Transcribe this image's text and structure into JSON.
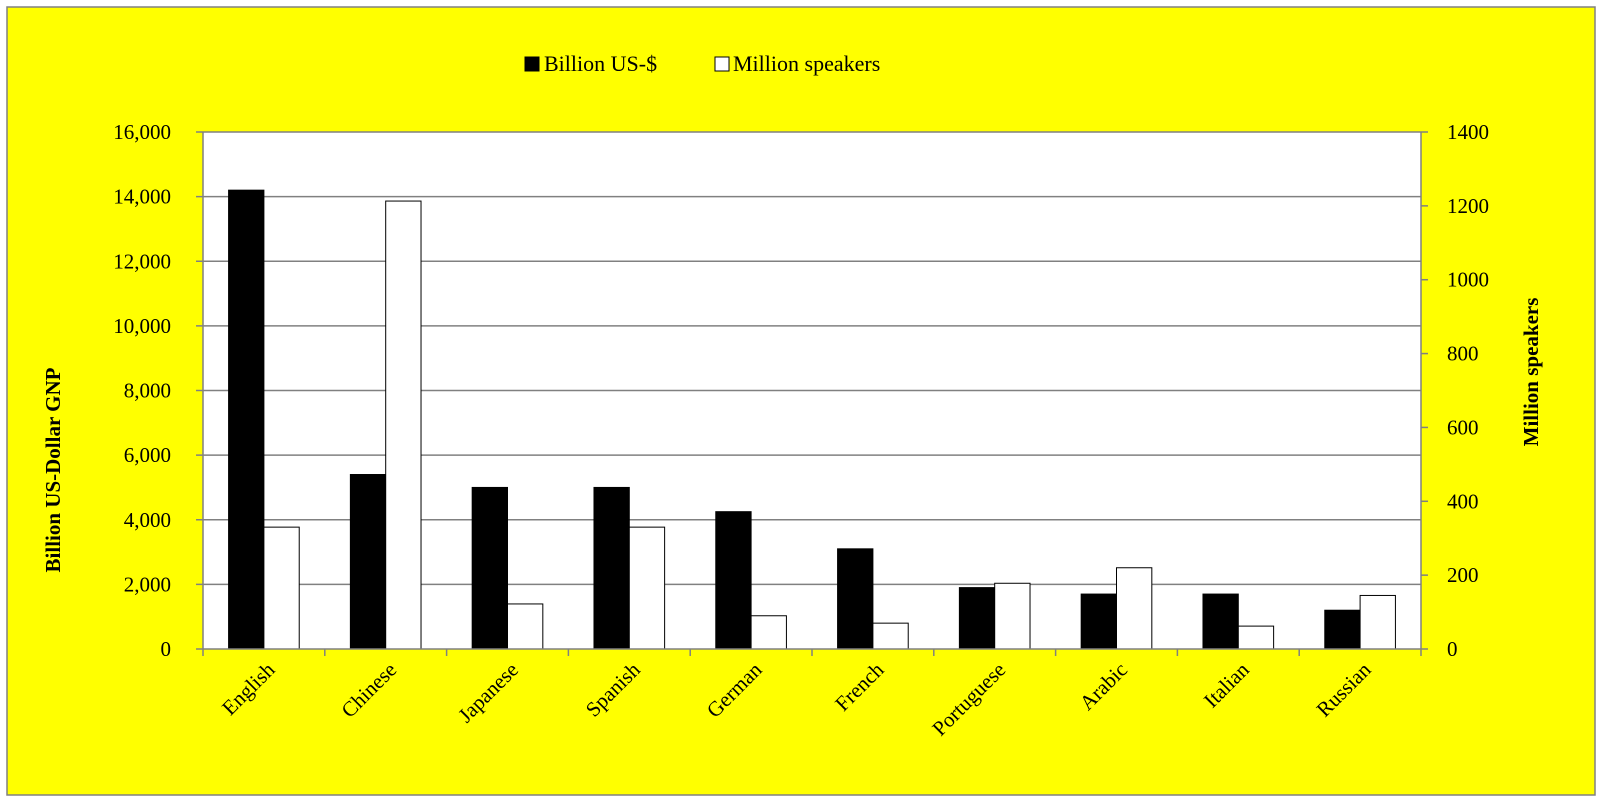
{
  "chart_data": {
    "type": "bar",
    "categories": [
      "English",
      "Chinese",
      "Japanese",
      "Spanish",
      "German",
      "French",
      "Portuguese",
      "Arabic",
      "Italian",
      "Russian"
    ],
    "series": [
      {
        "name": "Billion US-$",
        "axis": "left",
        "color": "#000000",
        "values": [
          14200,
          5400,
          5000,
          5000,
          4250,
          3100,
          1900,
          1700,
          1700,
          1200
        ]
      },
      {
        "name": "Million speakers",
        "axis": "right",
        "color": "#ffffff",
        "values": [
          330,
          1213,
          122,
          330,
          90,
          70,
          178,
          220,
          62,
          145
        ]
      }
    ],
    "ylabel": "Billion US-Dollar  GNP",
    "y2label": "Million  speakers",
    "ylim": [
      0,
      16000
    ],
    "y2lim": [
      0,
      1400
    ],
    "yticks": [
      "0",
      "2,000",
      "4,000",
      "6,000",
      "8,000",
      "10,000",
      "12,000",
      "14,000",
      "16,000"
    ],
    "y2ticks": [
      "0",
      "200",
      "400",
      "600",
      "800",
      "1000",
      "1200",
      "1400"
    ],
    "legend_position": "top-center",
    "grid": true,
    "background_color": "#ffff00",
    "plot_background_color": "#ffffff"
  }
}
